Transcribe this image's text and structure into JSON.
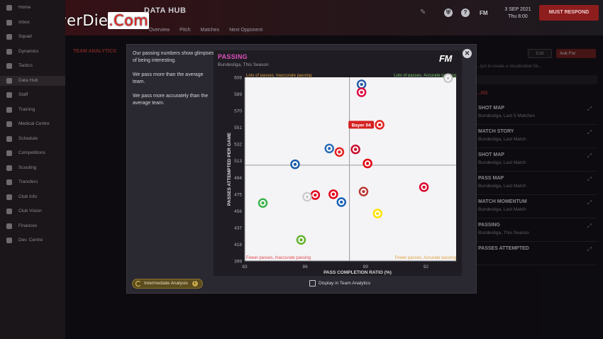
{
  "watermark": {
    "part1": "LinkNeverDie",
    "part2": ".Com"
  },
  "header": {
    "title": "DATA HUB",
    "date": "3 SEP 2021",
    "day": "Thu 8:00",
    "fm_label": "FM",
    "continue_label": "MUST RESPOND",
    "subnav": [
      "Overview",
      "Pitch",
      "Matches",
      "Next Opponent"
    ]
  },
  "sidebar": {
    "items": [
      "Home",
      "Inbox",
      "Squad",
      "Dynamics",
      "Tactics",
      "Data Hub",
      "Staff",
      "Training",
      "Medical Centre",
      "Schedule",
      "Competitions",
      "Scouting",
      "Transfers",
      "Club Info",
      "Club Vision",
      "Finances",
      "Dev. Centre"
    ]
  },
  "background": {
    "left_tab": "TEAM ANALYTICS",
    "edit_label": "Edit",
    "askfor_label": "Ask For",
    "hint": "...lyst to create a visualization for...",
    "category": "...NS",
    "cards": [
      {
        "title": "SHOT MAP",
        "sub": "Bundesliga, Last 5 Matches"
      },
      {
        "title": "MATCH STORY",
        "sub": "Bundesliga, Last Match"
      },
      {
        "title": "SHOT MAP",
        "sub": "Bundesliga, Last Match"
      },
      {
        "title": "PASS MAP",
        "sub": "Bundesliga, Last Match"
      },
      {
        "title": "MATCH MOMENTUM",
        "sub": "Bundesliga, Last Match"
      },
      {
        "title": "PASSING",
        "sub": "Bundesliga, This Season"
      },
      {
        "title": "PASSES ATTEMPTED",
        "sub": ""
      }
    ]
  },
  "modal": {
    "insights": [
      "Our passing numbers show glimpses of being interesting.",
      "We pass more than the average team.",
      "We pass more accurately than the average team."
    ],
    "intermediate_label": "Intermediate Analysis",
    "display_label": "Display in Team Analytics"
  },
  "chart_data": {
    "type": "scatter",
    "title": "PASSING",
    "subtitle": "Bundesliga, This Season",
    "xlabel": "PASS COMPLETION RATIO (%)",
    "ylabel": "PASSES ATTEMPTED PER GAME",
    "xlim": [
      83,
      93.5
    ],
    "ylim": [
      399,
      608
    ],
    "x_ticks": [
      83,
      86,
      89,
      92
    ],
    "y_ticks": [
      399,
      418,
      437,
      456,
      475,
      494,
      513,
      532,
      551,
      570,
      589,
      608
    ],
    "avg_x": 88.2,
    "avg_y": 508,
    "highlight_label": "Bayer 04",
    "quadrants": {
      "top_left": "Lots of passes, Inaccurate passing",
      "top_right": "Lots of passes, Accurate passing",
      "bottom_left": "Fewer passes, Inaccurate passing",
      "bottom_right": "Fewer passes, Accurate passing"
    },
    "points": [
      {
        "x": 89.7,
        "y": 554,
        "color": "#e32221",
        "highlight": true
      },
      {
        "x": 93.1,
        "y": 607,
        "color": "#c8c8c8"
      },
      {
        "x": 88.8,
        "y": 600,
        "color": "#2a5ca8"
      },
      {
        "x": 88.8,
        "y": 591,
        "color": "#dd0741"
      },
      {
        "x": 87.7,
        "y": 523,
        "color": "#e32221"
      },
      {
        "x": 88.5,
        "y": 526,
        "color": "#c8102e"
      },
      {
        "x": 87.2,
        "y": 527,
        "color": "#2d6db5"
      },
      {
        "x": 89.1,
        "y": 510,
        "color": "#e1000f"
      },
      {
        "x": 85.5,
        "y": 509,
        "color": "#1b5bab"
      },
      {
        "x": 91.9,
        "y": 483,
        "color": "#dc052d"
      },
      {
        "x": 86.5,
        "y": 474,
        "color": "#e2001a"
      },
      {
        "x": 87.4,
        "y": 475,
        "color": "#e2001a"
      },
      {
        "x": 88.9,
        "y": 478,
        "color": "#ba3733"
      },
      {
        "x": 86.1,
        "y": 472,
        "color": "#cccccc"
      },
      {
        "x": 87.8,
        "y": 466,
        "color": "#1961b5"
      },
      {
        "x": 83.9,
        "y": 465,
        "color": "#3cb04a"
      },
      {
        "x": 89.6,
        "y": 453,
        "color": "#fde100"
      },
      {
        "x": 85.8,
        "y": 423,
        "color": "#65b32e"
      }
    ]
  }
}
